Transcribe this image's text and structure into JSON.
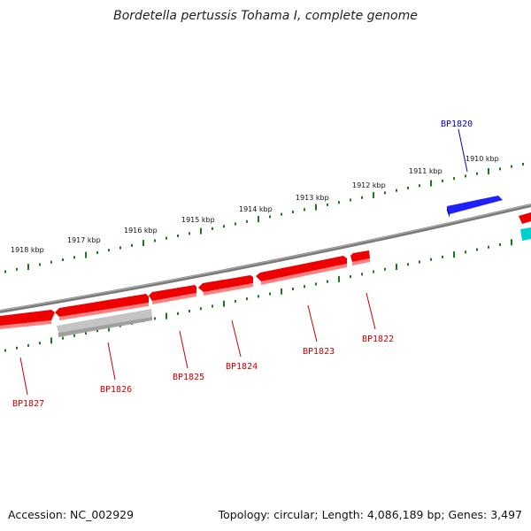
{
  "title": "Bordetella pertussis Tohama I, complete genome",
  "footer": {
    "accession": "Accession: NC_002929",
    "summary": "Topology: circular; Length: 4,086,189 bp; Genes: 3,497"
  },
  "colors": {
    "forward_gene": "#ee0000",
    "reverse_gene_red": "#ee0000",
    "blue_gene": "#1a1aff",
    "cyan_gene": "#00c8c8",
    "gray_gene": "#b4b4b4",
    "backbone": "#808080",
    "ticks": "#1a7a1a"
  },
  "scale_labels": [
    "1918 kbp",
    "1917 kbp",
    "1916 kbp",
    "1915 kbp",
    "1914 kbp",
    "1913 kbp",
    "1912 kbp",
    "1911 kbp",
    "1910 kbp"
  ],
  "genes": [
    {
      "name": "BP1820",
      "color": "blue"
    },
    {
      "name": "BP1822",
      "color": "red"
    },
    {
      "name": "BP1823",
      "color": "red"
    },
    {
      "name": "BP1824",
      "color": "red"
    },
    {
      "name": "BP1825",
      "color": "red"
    },
    {
      "name": "BP1826",
      "color": "red"
    },
    {
      "name": "BP1827",
      "color": "red"
    }
  ]
}
